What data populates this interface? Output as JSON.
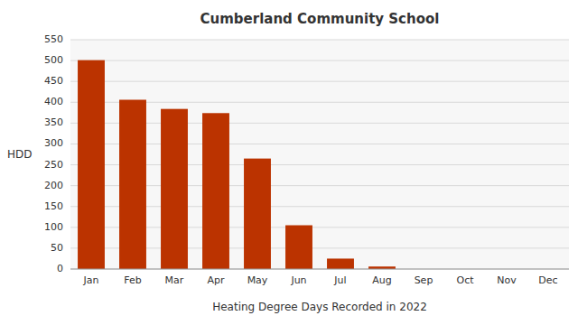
{
  "chart_data": {
    "type": "bar",
    "title": "Cumberland Community School",
    "xlabel": "Heating Degree Days Recorded in 2022",
    "ylabel": "HDD",
    "categories": [
      "Jan",
      "Feb",
      "Mar",
      "Apr",
      "May",
      "Jun",
      "Jul",
      "Aug",
      "Sep",
      "Oct",
      "Nov",
      "Dec"
    ],
    "values": [
      501,
      406,
      384,
      374,
      265,
      105,
      25,
      6,
      0,
      0,
      0,
      0
    ],
    "color": "#bb3300",
    "ylim": [
      0,
      550
    ],
    "yticks": [
      0,
      50,
      100,
      150,
      200,
      250,
      300,
      350,
      400,
      450,
      500,
      550
    ],
    "grid": true
  }
}
